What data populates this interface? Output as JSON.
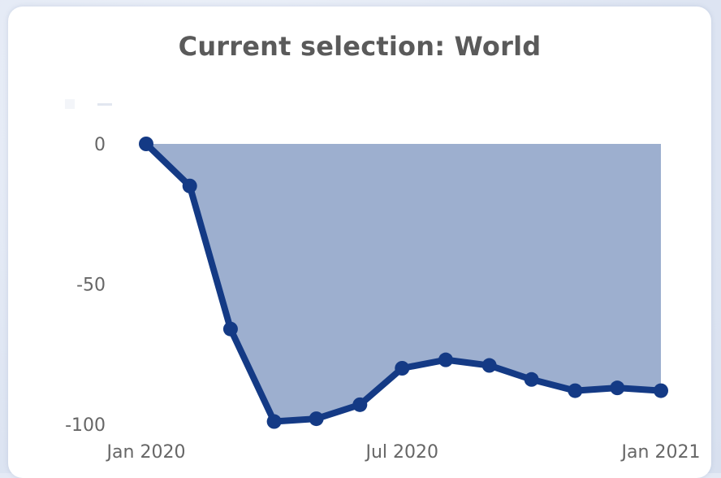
{
  "page": {
    "background_color": "#e4eaf5",
    "card_color": "#ffffff"
  },
  "chart_data": {
    "type": "area",
    "title": "Current selection: World",
    "xlabel": "",
    "ylabel": "",
    "legend": {
      "placement": "top-left",
      "visibility": "faint",
      "entries": []
    },
    "x": [
      "2020-01-01",
      "2020-02-01",
      "2020-03-01",
      "2020-04-01",
      "2020-05-01",
      "2020-06-01",
      "2020-07-01",
      "2020-08-01",
      "2020-09-01",
      "2020-10-01",
      "2020-11-01",
      "2020-12-01",
      "2021-01-01"
    ],
    "series": [
      {
        "values": [
          0,
          -15,
          -66,
          -99,
          -98,
          -93,
          -80,
          -77,
          -79,
          -84,
          -88,
          -87,
          -88
        ],
        "color": "#143a85",
        "fill_color": "#9dafcf",
        "marker": "circle"
      }
    ],
    "xlim": [
      "2020-01-01",
      "2021-01-01"
    ],
    "ylim": [
      -100,
      0
    ],
    "x_ticks": [
      {
        "value": "2020-01-01",
        "label": "Jan 2020"
      },
      {
        "value": "2020-07-01",
        "label": "Jul 2020"
      },
      {
        "value": "2021-01-01",
        "label": "Jan 2021"
      }
    ],
    "y_ticks": [
      {
        "value": 0,
        "label": "0"
      },
      {
        "value": -50,
        "label": "-50"
      },
      {
        "value": -100,
        "label": "-100"
      }
    ],
    "grid": false
  }
}
